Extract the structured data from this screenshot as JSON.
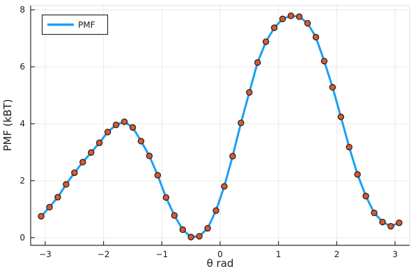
{
  "chart_data": {
    "type": "line",
    "title": "",
    "xlabel": "θ rad",
    "ylabel": "PMF (kBT)",
    "xlim": [
      -3.25,
      3.25
    ],
    "ylim": [
      -0.27,
      8.15
    ],
    "grid": true,
    "x_tick_values": [
      -3,
      -2,
      -1,
      0,
      1,
      2,
      3
    ],
    "x_tick_labels": [
      "−3",
      "−2",
      "−1",
      "0",
      "1",
      "2",
      "3"
    ],
    "y_tick_values": [
      0,
      2,
      4,
      6,
      8
    ],
    "y_tick_labels": [
      "0",
      "2",
      "4",
      "6",
      "8"
    ],
    "legend": {
      "position": "top-left",
      "entries": [
        {
          "label": "PMF"
        }
      ]
    },
    "series": [
      {
        "name": "PMF",
        "style": "line-with-markers",
        "line_color": "#1B9FF5",
        "line_width": 3,
        "marker_color": "#D45B34",
        "marker_stroke": "#2A1710",
        "x": [
          -3.07,
          -2.927,
          -2.785,
          -2.642,
          -2.499,
          -2.356,
          -2.213,
          -2.071,
          -1.928,
          -1.785,
          -1.642,
          -1.499,
          -1.357,
          -1.214,
          -1.071,
          -0.928,
          -0.785,
          -0.642,
          -0.5,
          -0.357,
          -0.214,
          -0.071,
          0.071,
          0.214,
          0.357,
          0.5,
          0.642,
          0.785,
          0.928,
          1.071,
          1.214,
          1.357,
          1.499,
          1.642,
          1.785,
          1.928,
          2.071,
          2.213,
          2.356,
          2.499,
          2.642,
          2.785,
          2.927,
          3.07
        ],
        "y": [
          0.75,
          1.07,
          1.42,
          1.87,
          2.28,
          2.65,
          2.99,
          3.33,
          3.71,
          3.96,
          4.07,
          3.87,
          3.39,
          2.87,
          2.19,
          1.41,
          0.78,
          0.28,
          0.02,
          0.05,
          0.33,
          0.95,
          1.8,
          2.86,
          4.03,
          5.1,
          6.15,
          6.88,
          7.37,
          7.68,
          7.79,
          7.76,
          7.53,
          7.04,
          6.2,
          5.28,
          4.24,
          3.18,
          2.22,
          1.46,
          0.87,
          0.55,
          0.4,
          0.52
        ]
      }
    ],
    "colors": {
      "grid": "#E9E9E9",
      "frame_light": "#DDDDDD",
      "spine_dark": "#2A2A2A",
      "background": "#FFFFFF"
    }
  }
}
